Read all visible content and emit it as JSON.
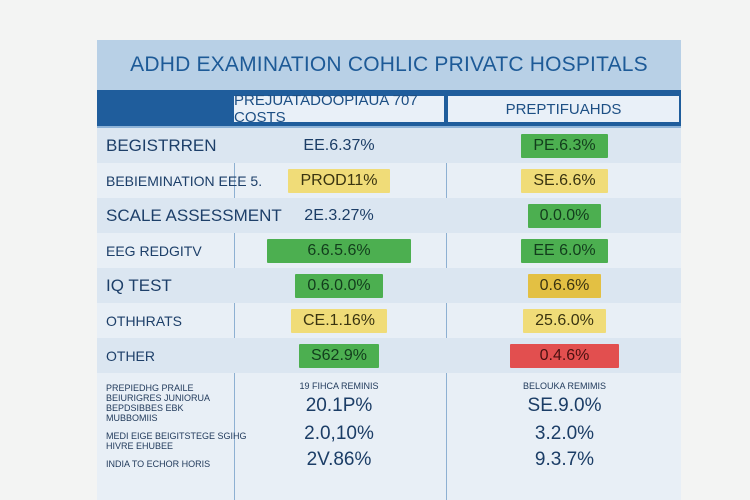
{
  "title": "ADHD EXAMINATION COHLIC PRIVATC HOSPITALS",
  "headers": {
    "col1": "PREJUATADOOPIAUA 707 COSTS",
    "col2": "PREPTIFUAHDS"
  },
  "rows": [
    {
      "label": "BEGISTRREN",
      "v1": "EE.6.37%",
      "v1_style": "plain",
      "v2": "PE.6.3%",
      "v2_style": "green"
    },
    {
      "label": "BEBIEMINATION EEE 5.",
      "v1": "PROD11%",
      "v1_style": "yellow",
      "v2": "SE.6.6%",
      "v2_style": "yellow"
    },
    {
      "label": "SCALE ASSESSMENT",
      "v1": "2E.3.27%",
      "v1_style": "plain",
      "v2": "0.0.0%",
      "v2_style": "green"
    },
    {
      "label": "EEG REDGITV",
      "v1": "6.6.5.6%",
      "v1_style": "green",
      "v2": "EE 6.0%",
      "v2_style": "green"
    },
    {
      "label": "IQ TEST",
      "v1": "0.6.0.0%",
      "v1_style": "green",
      "v2": "0.6.6%",
      "v2_style": "gold"
    },
    {
      "label": "OTHHRATS",
      "v1": "CE.1.16%",
      "v1_style": "yellow",
      "v2": "25.6.0%",
      "v2_style": "yellow"
    },
    {
      "label": "OTHER",
      "v1": "S62.9%",
      "v1_style": "green",
      "v2": "0.4.6%",
      "v2_style": "red"
    }
  ],
  "footer": {
    "notes_a": [
      "PREPIEDHG PRAILE",
      "BEIURIGRES JUNIORUA",
      "BEPDSIBBES EBK",
      "MUBBOMIIS"
    ],
    "notes_b": [
      "MEDI EIGE BEIGITSTEGE SGIHG",
      "HIVRE EHUBEE"
    ],
    "notes_c": "INDIA TO ECHOR HORIS",
    "col1_heading": "19 FIHCA REMINIS",
    "col2_heading": "BELOUKA REMIMIS",
    "values": [
      {
        "v1": "20.1P%",
        "v2": "SE.9.0%"
      },
      {
        "v1": "2.0,10%",
        "v2": "3.2.0%"
      },
      {
        "v1": "2V.86%",
        "v2": "9.3.7%"
      }
    ]
  }
}
